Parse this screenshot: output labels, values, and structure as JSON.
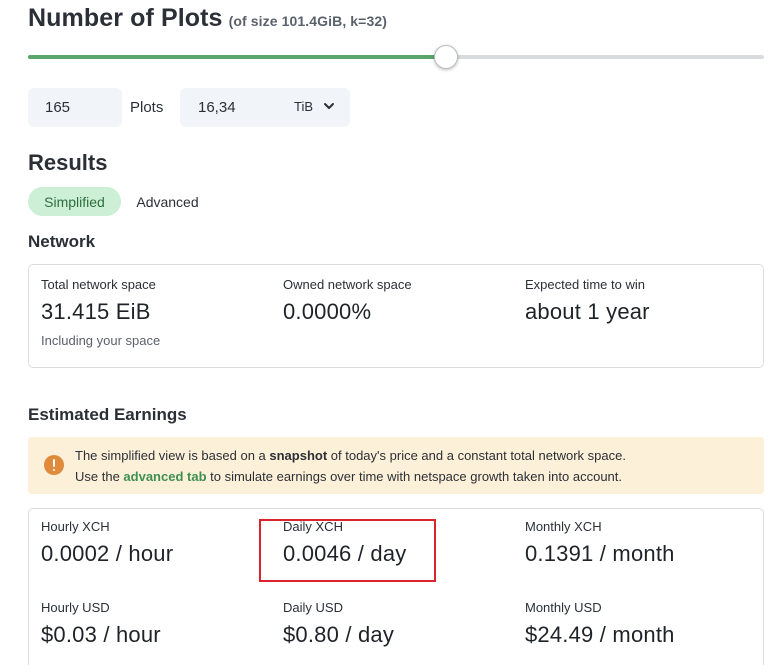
{
  "header": {
    "title": "Number of Plots",
    "subtitle": "(of size 101.4GiB, k=32)"
  },
  "slider": {
    "fraction": 0.568
  },
  "inputs": {
    "plots_value": "165",
    "plots_label": "Plots",
    "size_value": "16,34",
    "size_unit": "TiB"
  },
  "results": {
    "heading": "Results",
    "tabs": [
      {
        "label": "Simplified",
        "active": true
      },
      {
        "label": "Advanced",
        "active": false
      }
    ]
  },
  "network": {
    "heading": "Network",
    "stats": [
      {
        "label": "Total network space",
        "value": "31.415 EiB",
        "note": "Including your space"
      },
      {
        "label": "Owned network space",
        "value": "0.0000%"
      },
      {
        "label": "Expected time to win",
        "value": "about 1 year"
      }
    ]
  },
  "earnings": {
    "heading": "Estimated Earnings",
    "banner": {
      "l1_a": "The simplified view is based on a ",
      "l1_b": "snapshot",
      "l1_c": " of today's price and a constant total network space.",
      "l2_a": "Use the ",
      "l2_link": "advanced tab",
      "l2_c": " to simulate earnings over time with netspace growth taken into account."
    },
    "stats": [
      {
        "label": "Hourly XCH",
        "value": "0.0002 / hour"
      },
      {
        "label": "Daily XCH",
        "value": "0.0046 / day"
      },
      {
        "label": "Monthly XCH",
        "value": "0.1391 / month"
      },
      {
        "label": "Hourly USD",
        "value": "$0.03 / hour"
      },
      {
        "label": "Daily USD",
        "value": "$0.80 / day"
      },
      {
        "label": "Monthly USD",
        "value": "$24.49 / month"
      }
    ]
  },
  "colors": {
    "accent": "#5aa56a",
    "tab_active_bg": "#ccefd6",
    "banner_bg": "#fdf0d8",
    "warning_icon": "#e08a3c",
    "highlight": "#d9232d"
  },
  "icons": [
    "chevron-down-icon",
    "warning-icon"
  ]
}
